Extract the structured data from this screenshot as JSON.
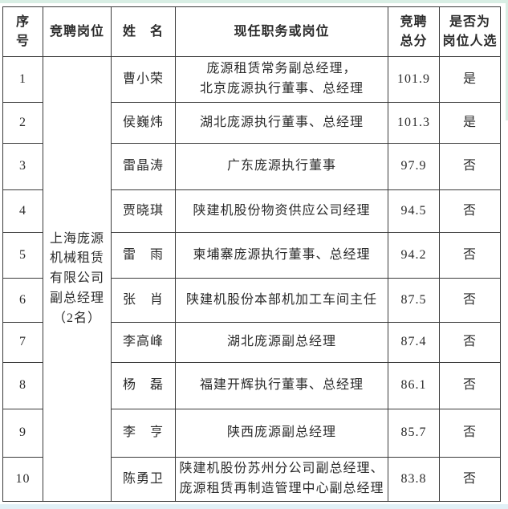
{
  "page": {
    "scan_edge_top_color": "#d8eee4",
    "scan_edge_bottom_color": "#e1f0f6",
    "border_color": "#3b3b3b",
    "text_color": "#2b2b2b"
  },
  "table": {
    "headers": {
      "no": "序\n号",
      "position_applied": "竞聘岗位",
      "name": "姓　名",
      "current_position": "现任职务或岗位",
      "total_score": "竞聘\n总分",
      "selected": "是否为\n岗位人选"
    },
    "merged_position_applied": "上海庞源\n机械租赁\n有限公司\n副总经理\n（2名）",
    "rows": [
      {
        "no": "1",
        "name": "曹小荣",
        "current_position": "庞源租赁常务副总经理，\n北京庞源执行董事、总经理",
        "total_score": "101.9",
        "selected": "是"
      },
      {
        "no": "2",
        "name": "侯巍炜",
        "current_position": "湖北庞源执行董事、总经理",
        "total_score": "101.3",
        "selected": "是"
      },
      {
        "no": "3",
        "name": "雷晶涛",
        "current_position": "广东庞源执行董事",
        "total_score": "97.9",
        "selected": "否"
      },
      {
        "no": "4",
        "name": "贾晓琪",
        "current_position": "陕建机股份物资供应公司经理",
        "total_score": "94.5",
        "selected": "否"
      },
      {
        "no": "5",
        "name": "雷　雨",
        "current_position": "柬埔寨庞源执行董事、总经理",
        "total_score": "94.2",
        "selected": "否"
      },
      {
        "no": "6",
        "name": "张　肖",
        "current_position": "陕建机股份本部机加工车间主任",
        "total_score": "87.5",
        "selected": "否"
      },
      {
        "no": "7",
        "name": "李高峰",
        "current_position": "湖北庞源副总经理",
        "total_score": "87.4",
        "selected": "否"
      },
      {
        "no": "8",
        "name": "杨　磊",
        "current_position": "福建开辉执行董事、总经理",
        "total_score": "86.1",
        "selected": "否"
      },
      {
        "no": "9",
        "name": "李　亨",
        "current_position": "陕西庞源副总经理",
        "total_score": "85.7",
        "selected": "否"
      },
      {
        "no": "10",
        "name": "陈勇卫",
        "current_position": "陕建机股份苏州分公司副总经理、\n庞源租赁再制造管理中心副总经理",
        "total_score": "83.8",
        "selected": "否"
      }
    ]
  }
}
